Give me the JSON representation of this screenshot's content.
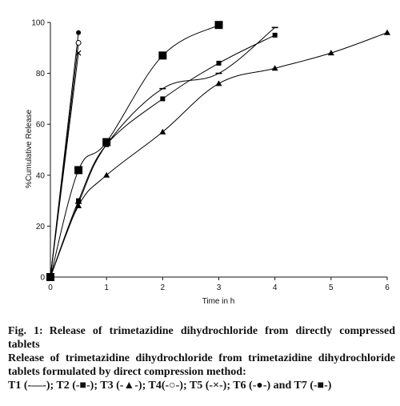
{
  "chart_data": {
    "type": "line",
    "ylabel": "%Cumulative Release",
    "xlabel": "Time in h",
    "xlim": [
      0,
      6
    ],
    "ylim": [
      0,
      100
    ],
    "x_ticks": [
      "0",
      "1",
      "2",
      "3",
      "4",
      "5",
      "6"
    ],
    "y_ticks": [
      "0",
      "20",
      "40",
      "60",
      "80",
      "100"
    ],
    "grid": false,
    "legend": "none (described in caption)",
    "series": [
      {
        "marker": "dash",
        "x": [
          0,
          0.5,
          1,
          2,
          3,
          4
        ],
        "y": [
          0,
          29,
          52,
          74,
          80,
          98
        ]
      },
      {
        "marker": "small-square",
        "x": [
          0,
          0.5,
          1,
          2,
          3,
          4
        ],
        "y": [
          0,
          30,
          52,
          70,
          84,
          95
        ]
      },
      {
        "marker": "triangle",
        "x": [
          0,
          0.5,
          1,
          2,
          3,
          4,
          5,
          6
        ],
        "y": [
          0,
          28,
          40,
          57,
          76,
          82,
          88,
          96
        ]
      },
      {
        "marker": "open-circle",
        "x": [
          0,
          0.5
        ],
        "y": [
          0,
          92
        ]
      },
      {
        "marker": "x",
        "x": [
          0,
          0.5
        ],
        "y": [
          0,
          88
        ]
      },
      {
        "marker": "filled-circle",
        "x": [
          0,
          0.5
        ],
        "y": [
          0,
          96
        ]
      },
      {
        "marker": "large-square",
        "x": [
          0,
          0.5,
          1,
          2,
          3
        ],
        "y": [
          0,
          42,
          53,
          87,
          99
        ]
      }
    ]
  },
  "caption": {
    "fig_label": "Fig. 1:",
    "fig_title": "Release of trimetazidine dihydrochloride from directly compressed tablets",
    "line2": "Release of trimetazidine dihydrochloride from trimetazidine dihydrochloride tablets formulated by direct compression method:",
    "line3": "T1 (-—-); T2 (-■-); T3 (-▲-); T4(-○-); T5 (-×-); T6 (-●-) and T7 (-■-)"
  }
}
